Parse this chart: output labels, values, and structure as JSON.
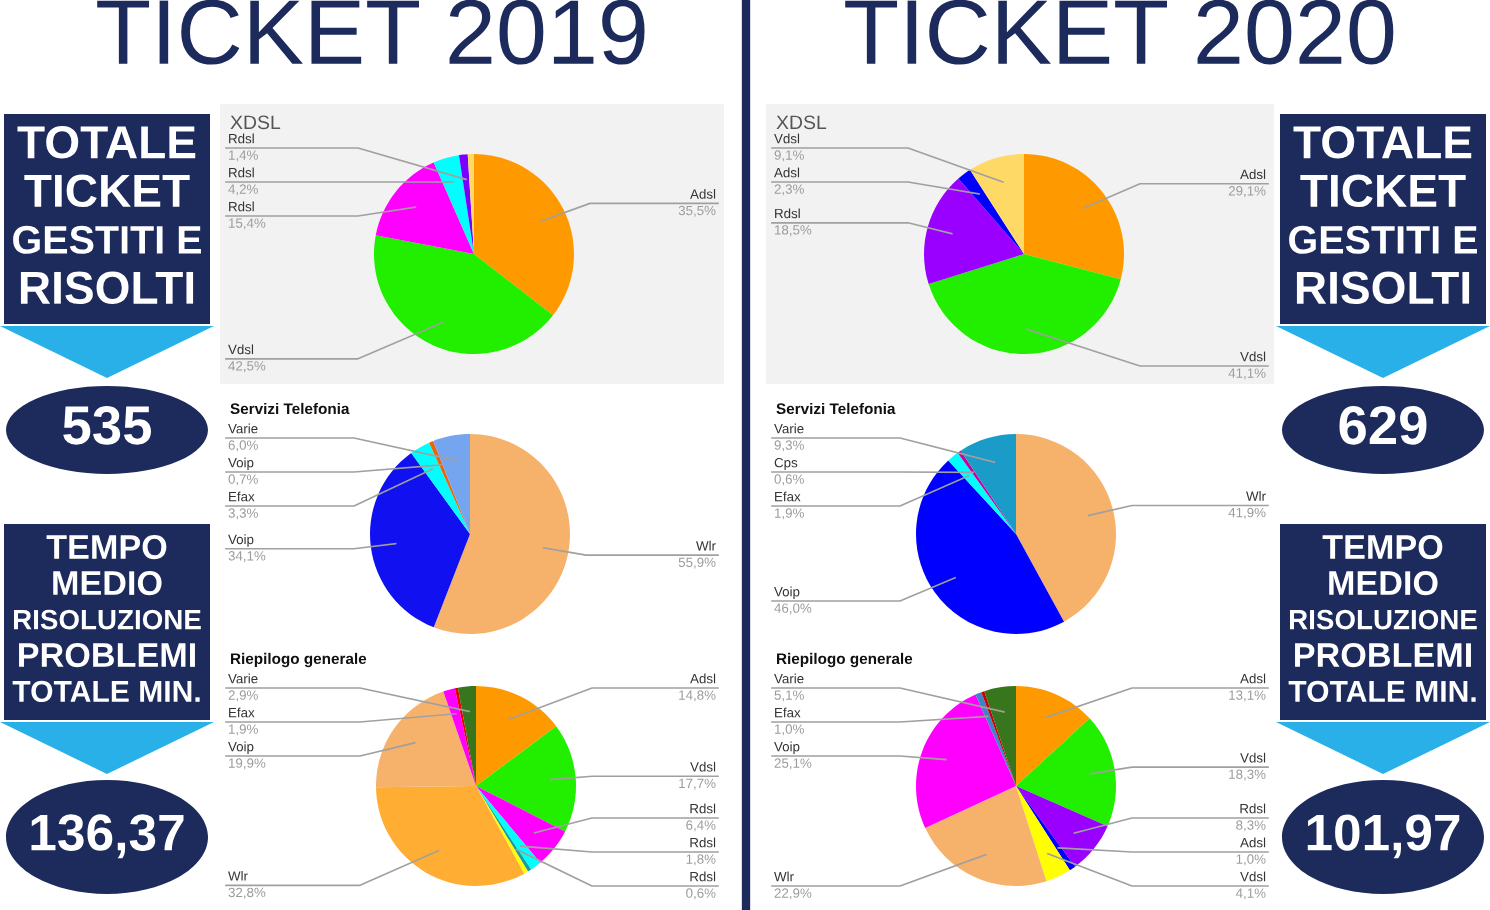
{
  "chart_data": [
    {
      "type": "other",
      "title": "TICKET 2019",
      "annotations": [
        "TOTALE\nTICKET\nGESTITI E\nRISOLTI",
        "535",
        "TEMPO\nMEDIO\nRISOLUZIONE\nPROBLEMI\nTOTALE MIN.",
        "136,37"
      ]
    },
    {
      "type": "pie",
      "title": "XDSL",
      "categories": [
        "Adsl",
        "Vdsl",
        "Rdsl",
        "Rdsl",
        "Rdsl",
        null
      ],
      "values": [
        35.5,
        42.5,
        15.4,
        4.2,
        1.4,
        1.0
      ],
      "colors": [
        "#ff9900",
        "#22ee00",
        "#ff00ff",
        "#00ffff",
        "#7a00ff",
        "#ffd966"
      ],
      "value_labels": [
        "35,5%",
        "42,5%",
        "15,4%",
        "4,2%",
        "1,4%",
        null
      ]
    },
    {
      "type": "pie",
      "title": "Servizi Telefonia",
      "categories": [
        "Wlr",
        "Voip",
        "Efax",
        "Voip",
        "Varie"
      ],
      "values": [
        55.9,
        34.1,
        3.3,
        0.7,
        6.0
      ],
      "colors": [
        "#f6b26b",
        "#1010f0",
        "#00ffff",
        "#e8650a",
        "#76a5f0"
      ],
      "value_labels": [
        "55,9%",
        "34,1%",
        "3,3%",
        "0,7%",
        "6,0%"
      ]
    },
    {
      "type": "pie",
      "title": "Riepilogo generale",
      "categories": [
        "Adsl",
        "Vdsl",
        "Rdsl",
        "Rdsl",
        "Rdsl",
        null,
        "Wlr",
        "Voip",
        "Efax",
        null,
        "Varie"
      ],
      "values": [
        14.8,
        17.7,
        6.4,
        1.8,
        0.6,
        0.7,
        32.8,
        19.9,
        1.9,
        0.5,
        2.9
      ],
      "colors": [
        "#ff9900",
        "#22ee00",
        "#ff00ff",
        "#00ffff",
        "#11a0a0",
        "#ffff00",
        "#ffad33",
        "#f6b26b",
        "#ff00ff",
        "#e60000",
        "#38761d"
      ],
      "value_labels": [
        "14,8%",
        "17,7%",
        "6,4%",
        "1,8%",
        "0,6%",
        null,
        "32,8%",
        "19,9%",
        "1,9%",
        null,
        "2,9%"
      ]
    },
    {
      "type": "other",
      "title": "TICKET 2020",
      "annotations": [
        "TOTALE\nTICKET\nGESTITI E\nRISOLTI",
        "629",
        "TEMPO\nMEDIO\nRISOLUZIONE\nPROBLEMI\nTOTALE MIN.",
        "101,97"
      ]
    },
    {
      "type": "pie",
      "title": "XDSL",
      "categories": [
        "Adsl",
        "Vdsl",
        "Rdsl",
        "Adsl",
        "Vdsl"
      ],
      "values": [
        29.1,
        41.1,
        18.5,
        2.3,
        9.1
      ],
      "colors": [
        "#ff9900",
        "#22ee00",
        "#9900ff",
        "#0000ff",
        "#ffd966"
      ],
      "value_labels": [
        "29,1%",
        "41,1%",
        "18,5%",
        "2,3%",
        "9,1%"
      ]
    },
    {
      "type": "pie",
      "title": "Servizi Telefonia",
      "categories": [
        "Wlr",
        "Voip",
        "Efax",
        "Cps",
        "Varie"
      ],
      "values": [
        41.9,
        46.0,
        1.9,
        0.6,
        9.3
      ],
      "colors": [
        "#f6b26b",
        "#0000ff",
        "#00ffff",
        "#cc0099",
        "#1a9bc8"
      ],
      "value_labels": [
        "41,9%",
        "46,0%",
        "1,9%",
        "0,6%",
        "9,3%"
      ]
    },
    {
      "type": "pie",
      "title": "Riepilogo generale",
      "categories": [
        "Adsl",
        "Vdsl",
        "Rdsl",
        "Adsl",
        "Vdsl",
        "Wlr",
        "Voip",
        "Efax",
        null,
        "Varie"
      ],
      "values": [
        13.1,
        18.3,
        8.3,
        1.0,
        4.1,
        22.9,
        25.1,
        1.0,
        0.5,
        5.1
      ],
      "colors": [
        "#ff9900",
        "#22ee00",
        "#9900ff",
        "#0000ff",
        "#ffff00",
        "#f6b26b",
        "#ff00ff",
        "#3d85c6",
        "#cc0000",
        "#38761d"
      ],
      "value_labels": [
        "13,1%",
        "18,3%",
        "8,3%",
        "1,0%",
        "4,1%",
        "22,9%",
        "25,1%",
        "1,0%",
        null,
        "5,1%"
      ]
    }
  ]
}
